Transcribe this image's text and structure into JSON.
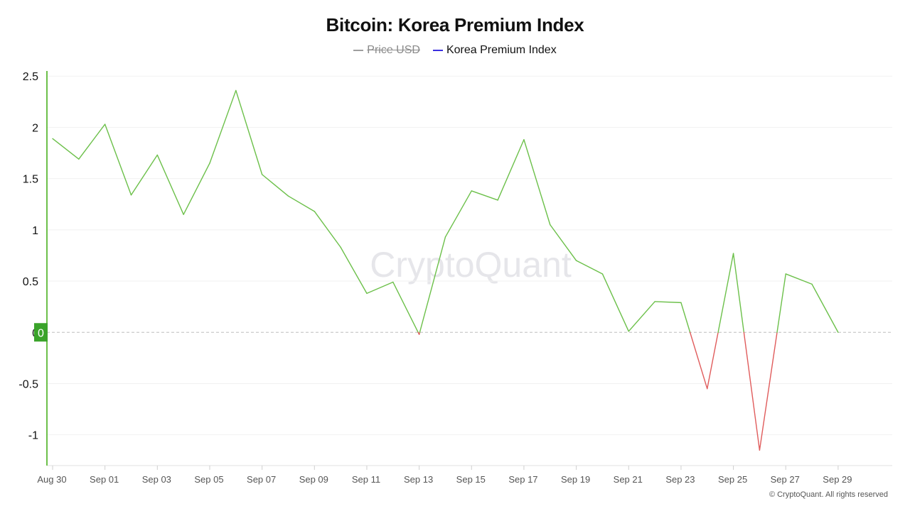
{
  "chart_data": {
    "type": "line",
    "title": "Bitcoin: Korea Premium Index",
    "legend": [
      {
        "name": "Price USD",
        "color": "#9e9e9e",
        "enabled": false
      },
      {
        "name": "Korea Premium Index",
        "color": "#3b2fe0",
        "enabled": true
      }
    ],
    "x": [
      "Aug 30",
      "Aug 31",
      "Sep 01",
      "Sep 02",
      "Sep 03",
      "Sep 04",
      "Sep 05",
      "Sep 06",
      "Sep 07",
      "Sep 08",
      "Sep 09",
      "Sep 10",
      "Sep 11",
      "Sep 12",
      "Sep 13",
      "Sep 14",
      "Sep 15",
      "Sep 16",
      "Sep 17",
      "Sep 18",
      "Sep 19",
      "Sep 20",
      "Sep 21",
      "Sep 22",
      "Sep 23",
      "Sep 24",
      "Sep 25",
      "Sep 26",
      "Sep 27",
      "Sep 28",
      "Sep 29"
    ],
    "xticks": [
      "Aug 30",
      "Sep 01",
      "Sep 03",
      "Sep 05",
      "Sep 07",
      "Sep 09",
      "Sep 11",
      "Sep 13",
      "Sep 15",
      "Sep 17",
      "Sep 19",
      "Sep 21",
      "Sep 23",
      "Sep 25",
      "Sep 27",
      "Sep 29"
    ],
    "series": [
      {
        "name": "Korea Premium Index",
        "values": [
          1.89,
          1.69,
          2.03,
          1.34,
          1.73,
          1.15,
          1.65,
          2.36,
          1.54,
          1.33,
          1.18,
          0.83,
          0.38,
          0.49,
          -0.02,
          0.93,
          1.38,
          1.29,
          1.88,
          1.05,
          0.7,
          0.57,
          0.01,
          0.3,
          0.29,
          -0.55,
          0.77,
          -1.15,
          0.57,
          0.47,
          0.0
        ]
      }
    ],
    "yticks": [
      2.5,
      2,
      1.5,
      1,
      0.5,
      0,
      -0.5,
      -1
    ],
    "ylim": [
      -1.3,
      2.55
    ],
    "positive_color": "#6cc04a",
    "negative_color": "#e05c5c",
    "zero_badge": "0",
    "watermark": "CryptoQuant"
  },
  "copyright": "© CryptoQuant. All rights reserved"
}
